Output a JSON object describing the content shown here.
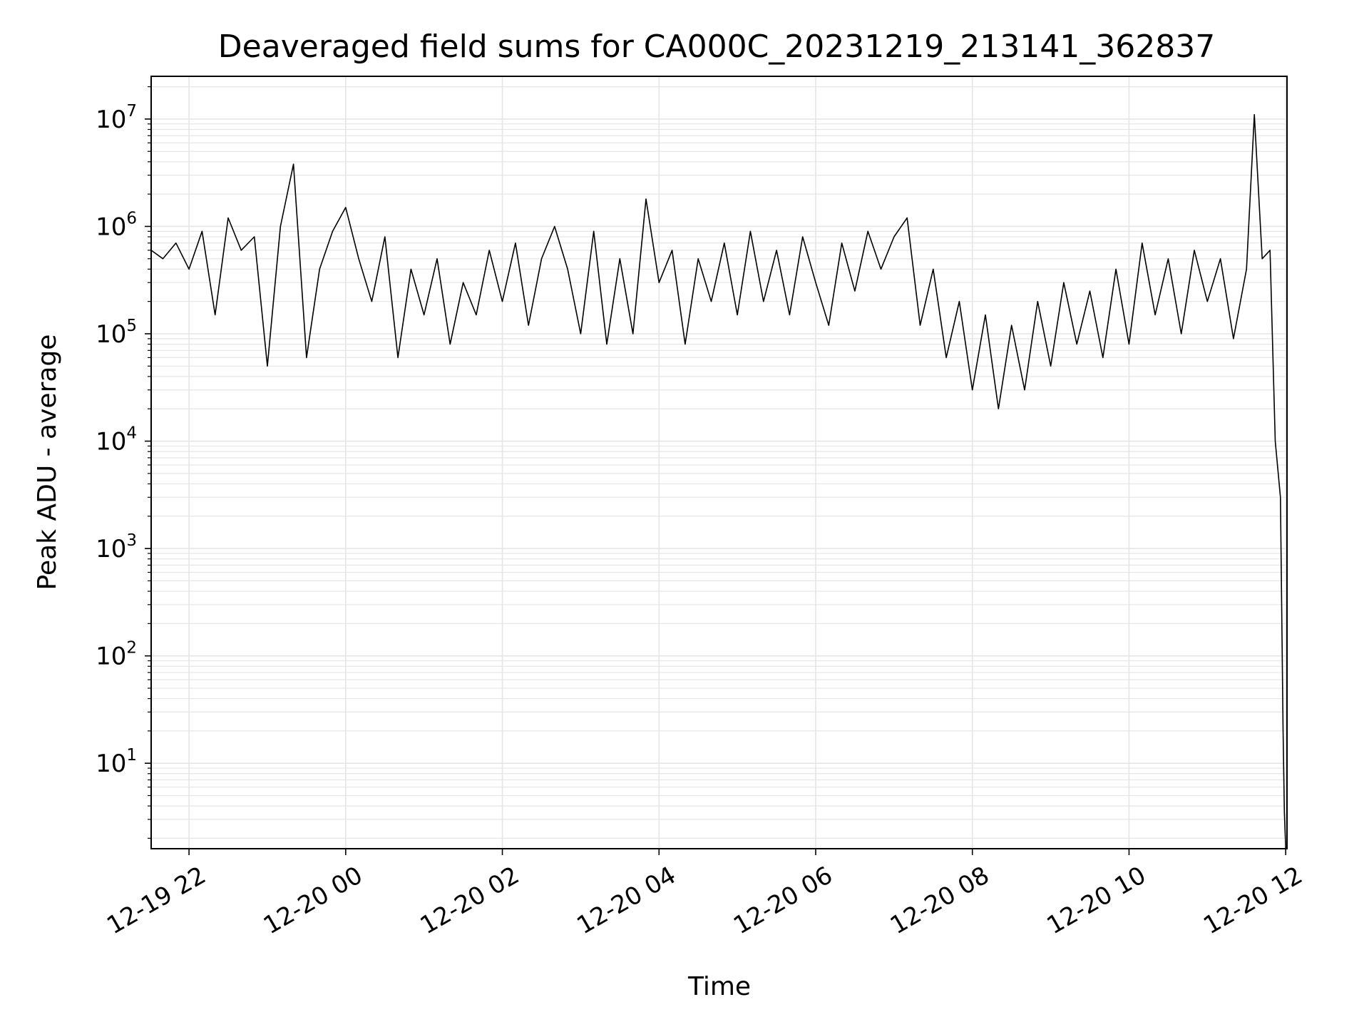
{
  "chart_data": {
    "type": "line",
    "title": "Deaveraged field sums for CA000C_20231219_213141_362837",
    "xlabel": "Time",
    "ylabel": "Peak ADU - average",
    "yscale": "log",
    "grid": true,
    "line_color": "#000000",
    "grid_color": "#e6e6e6",
    "xlim": [
      "2023-12-19 21:31",
      "2023-12-20 12:01"
    ],
    "ylim": [
      1.6,
      25000000
    ],
    "x_ticks": [
      {
        "value": "2023-12-19 22:00",
        "label": "12-19 22"
      },
      {
        "value": "2023-12-20 00:00",
        "label": "12-20 00"
      },
      {
        "value": "2023-12-20 02:00",
        "label": "12-20 02"
      },
      {
        "value": "2023-12-20 04:00",
        "label": "12-20 04"
      },
      {
        "value": "2023-12-20 06:00",
        "label": "12-20 06"
      },
      {
        "value": "2023-12-20 08:00",
        "label": "12-20 08"
      },
      {
        "value": "2023-12-20 10:00",
        "label": "12-20 10"
      },
      {
        "value": "2023-12-20 12:00",
        "label": "12-20 12"
      }
    ],
    "y_ticks": [
      {
        "value": 10,
        "base": "10",
        "exp": "1"
      },
      {
        "value": 100,
        "base": "10",
        "exp": "2"
      },
      {
        "value": 1000,
        "base": "10",
        "exp": "3"
      },
      {
        "value": 10000,
        "base": "10",
        "exp": "4"
      },
      {
        "value": 100000,
        "base": "10",
        "exp": "5"
      },
      {
        "value": 1000000,
        "base": "10",
        "exp": "6"
      },
      {
        "value": 10000000,
        "base": "10",
        "exp": "7"
      }
    ],
    "series": [
      {
        "points": [
          [
            "2023-12-19 21:31",
            600000
          ],
          [
            "2023-12-19 21:40",
            500000
          ],
          [
            "2023-12-19 21:50",
            700000
          ],
          [
            "2023-12-19 22:00",
            400000
          ],
          [
            "2023-12-19 22:10",
            900000
          ],
          [
            "2023-12-19 22:20",
            150000
          ],
          [
            "2023-12-19 22:30",
            1200000
          ],
          [
            "2023-12-19 22:40",
            600000
          ],
          [
            "2023-12-19 22:50",
            800000
          ],
          [
            "2023-12-19 23:00",
            50000
          ],
          [
            "2023-12-19 23:10",
            1000000
          ],
          [
            "2023-12-19 23:20",
            3800000
          ],
          [
            "2023-12-19 23:30",
            60000
          ],
          [
            "2023-12-19 23:40",
            400000
          ],
          [
            "2023-12-19 23:50",
            900000
          ],
          [
            "2023-12-20 00:00",
            1500000
          ],
          [
            "2023-12-20 00:10",
            500000
          ],
          [
            "2023-12-20 00:20",
            200000
          ],
          [
            "2023-12-20 00:30",
            800000
          ],
          [
            "2023-12-20 00:40",
            60000
          ],
          [
            "2023-12-20 00:50",
            400000
          ],
          [
            "2023-12-20 01:00",
            150000
          ],
          [
            "2023-12-20 01:10",
            500000
          ],
          [
            "2023-12-20 01:20",
            80000
          ],
          [
            "2023-12-20 01:30",
            300000
          ],
          [
            "2023-12-20 01:40",
            150000
          ],
          [
            "2023-12-20 01:50",
            600000
          ],
          [
            "2023-12-20 02:00",
            200000
          ],
          [
            "2023-12-20 02:10",
            700000
          ],
          [
            "2023-12-20 02:20",
            120000
          ],
          [
            "2023-12-20 02:30",
            500000
          ],
          [
            "2023-12-20 02:40",
            1000000
          ],
          [
            "2023-12-20 02:50",
            400000
          ],
          [
            "2023-12-20 03:00",
            100000
          ],
          [
            "2023-12-20 03:10",
            900000
          ],
          [
            "2023-12-20 03:20",
            80000
          ],
          [
            "2023-12-20 03:30",
            500000
          ],
          [
            "2023-12-20 03:40",
            100000
          ],
          [
            "2023-12-20 03:50",
            1800000
          ],
          [
            "2023-12-20 04:00",
            300000
          ],
          [
            "2023-12-20 04:10",
            600000
          ],
          [
            "2023-12-20 04:20",
            80000
          ],
          [
            "2023-12-20 04:30",
            500000
          ],
          [
            "2023-12-20 04:40",
            200000
          ],
          [
            "2023-12-20 04:50",
            700000
          ],
          [
            "2023-12-20 05:00",
            150000
          ],
          [
            "2023-12-20 05:10",
            900000
          ],
          [
            "2023-12-20 05:20",
            200000
          ],
          [
            "2023-12-20 05:30",
            600000
          ],
          [
            "2023-12-20 05:40",
            150000
          ],
          [
            "2023-12-20 05:50",
            800000
          ],
          [
            "2023-12-20 06:00",
            300000
          ],
          [
            "2023-12-20 06:10",
            120000
          ],
          [
            "2023-12-20 06:20",
            700000
          ],
          [
            "2023-12-20 06:30",
            250000
          ],
          [
            "2023-12-20 06:40",
            900000
          ],
          [
            "2023-12-20 06:50",
            400000
          ],
          [
            "2023-12-20 07:00",
            800000
          ],
          [
            "2023-12-20 07:10",
            1200000
          ],
          [
            "2023-12-20 07:20",
            120000
          ],
          [
            "2023-12-20 07:30",
            400000
          ],
          [
            "2023-12-20 07:40",
            60000
          ],
          [
            "2023-12-20 07:50",
            200000
          ],
          [
            "2023-12-20 08:00",
            30000
          ],
          [
            "2023-12-20 08:10",
            150000
          ],
          [
            "2023-12-20 08:20",
            20000
          ],
          [
            "2023-12-20 08:30",
            120000
          ],
          [
            "2023-12-20 08:40",
            30000
          ],
          [
            "2023-12-20 08:50",
            200000
          ],
          [
            "2023-12-20 09:00",
            50000
          ],
          [
            "2023-12-20 09:10",
            300000
          ],
          [
            "2023-12-20 09:20",
            80000
          ],
          [
            "2023-12-20 09:30",
            250000
          ],
          [
            "2023-12-20 09:40",
            60000
          ],
          [
            "2023-12-20 09:50",
            400000
          ],
          [
            "2023-12-20 10:00",
            80000
          ],
          [
            "2023-12-20 10:10",
            700000
          ],
          [
            "2023-12-20 10:20",
            150000
          ],
          [
            "2023-12-20 10:30",
            500000
          ],
          [
            "2023-12-20 10:40",
            100000
          ],
          [
            "2023-12-20 10:50",
            600000
          ],
          [
            "2023-12-20 11:00",
            200000
          ],
          [
            "2023-12-20 11:10",
            500000
          ],
          [
            "2023-12-20 11:20",
            90000
          ],
          [
            "2023-12-20 11:30",
            400000
          ],
          [
            "2023-12-20 11:36",
            11000000
          ],
          [
            "2023-12-20 11:42",
            500000
          ],
          [
            "2023-12-20 11:48",
            600000
          ],
          [
            "2023-12-20 11:52",
            10000
          ],
          [
            "2023-12-20 11:56",
            3000
          ],
          [
            "2023-12-20 11:58",
            20
          ],
          [
            "2023-12-20 11:59",
            3.5
          ],
          [
            "2023-12-20 12:00",
            1.6
          ]
        ]
      }
    ]
  }
}
